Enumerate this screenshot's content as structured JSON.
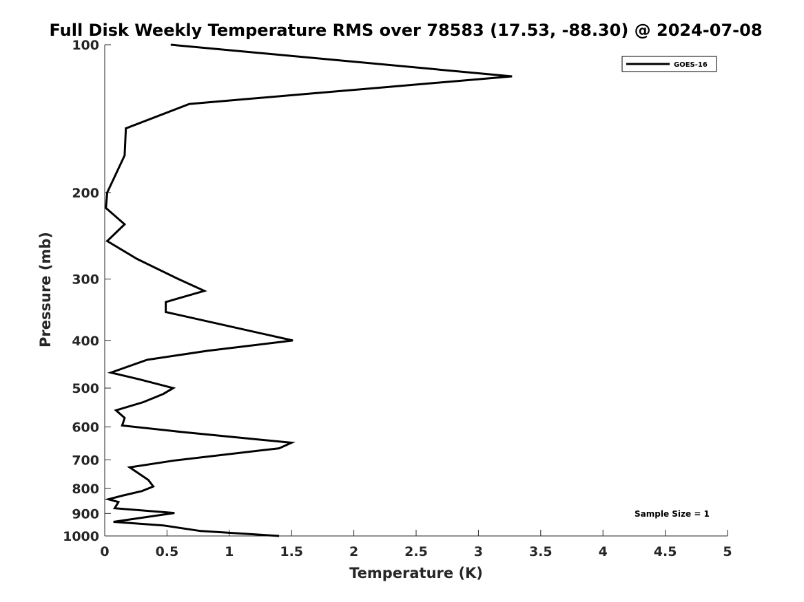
{
  "chart_data": {
    "type": "line",
    "title": "Full Disk Weekly Temperature RMS over 78583 (17.53, -88.30) @ 2024-07-08",
    "xlabel": "Temperature (K)",
    "ylabel": "Pressure (mb)",
    "xlim": [
      0,
      5
    ],
    "ylim": [
      1000,
      100
    ],
    "y_scale": "log",
    "x_ticks": [
      "0",
      "0.5",
      "1",
      "1.5",
      "2",
      "2.5",
      "3",
      "3.5",
      "4",
      "4.5",
      "5"
    ],
    "y_ticks": [
      "100",
      "200",
      "300",
      "400",
      "500",
      "600",
      "700",
      "800",
      "900",
      "1000"
    ],
    "grid": false,
    "legend": {
      "placement": "top-right",
      "entries": [
        "GOES-16"
      ]
    },
    "annotation": "Sample Size = 1",
    "series": [
      {
        "name": "GOES-16",
        "color": "#000000",
        "x": [
          0.53,
          3.27,
          0.68,
          0.17,
          0.16,
          0.02,
          0.01,
          0.16,
          0.02,
          0.26,
          0.58,
          0.8,
          0.49,
          0.49,
          1.51,
          0.82,
          0.34,
          0.05,
          0.28,
          0.55,
          0.47,
          0.31,
          0.09,
          0.16,
          0.15,
          0.14,
          0.64,
          1.5,
          1.4,
          0.56,
          0.2,
          0.35,
          0.39,
          0.3,
          0.14,
          0.03,
          0.11,
          0.08,
          0.56,
          0.07,
          0.47,
          0.77,
          1.4
        ],
        "y": [
          100,
          116,
          132,
          148,
          168,
          200,
          215,
          232,
          251,
          273,
          299,
          317,
          334,
          350,
          400,
          420,
          438,
          465,
          480,
          500,
          514,
          534,
          555,
          575,
          586,
          596,
          615,
          646,
          663,
          702,
          725,
          769,
          793,
          810,
          828,
          842,
          853,
          878,
          898,
          936,
          952,
          977,
          1000
        ]
      }
    ]
  }
}
